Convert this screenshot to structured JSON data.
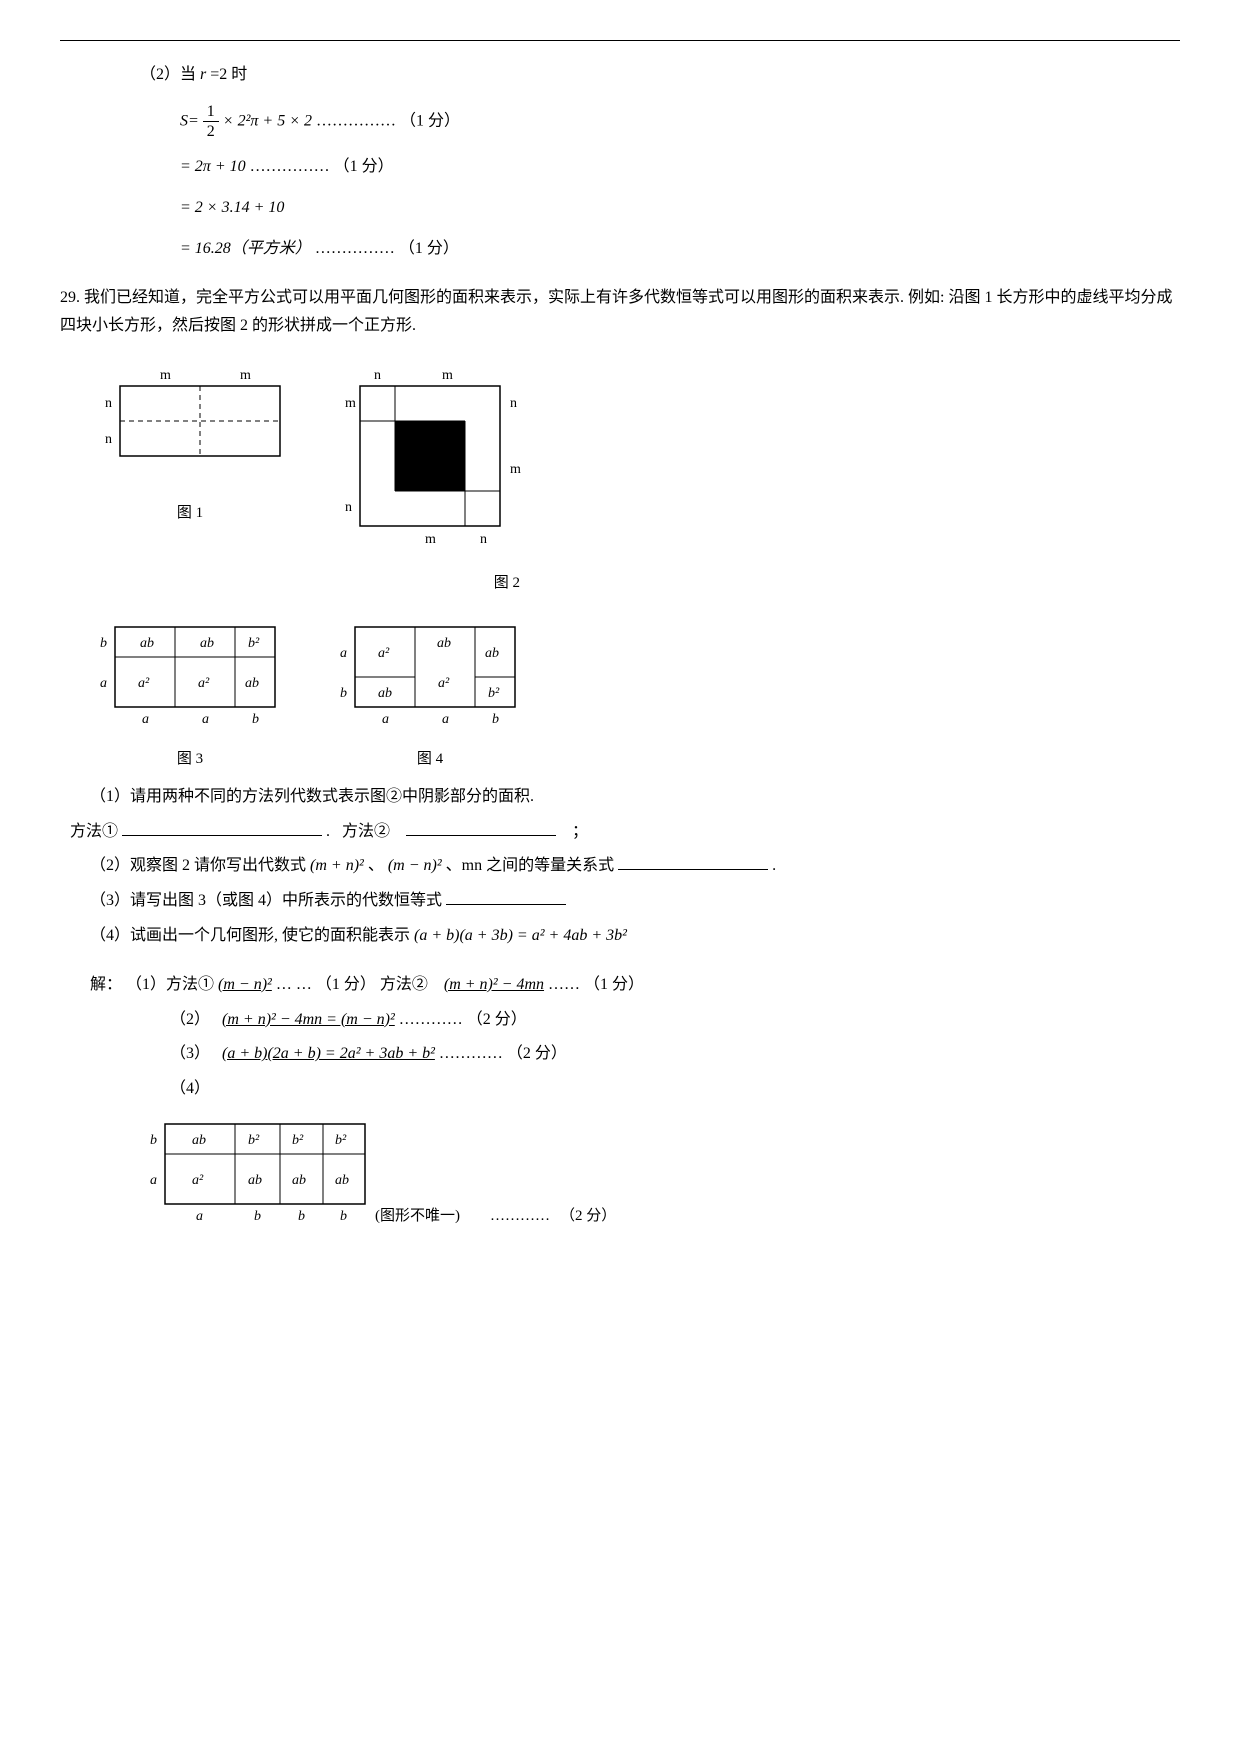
{
  "problem28": {
    "part2_intro": "（2）当",
    "part2_var": "r",
    "part2_eq": "=2 时",
    "line1_prefix": "S=",
    "line1_frac_num": "1",
    "line1_frac_den": "2",
    "line1_rest": "× 2²π + 5 × 2",
    "line1_dots": "……………",
    "line1_score": "（1 分）",
    "line2_val": "= 2π + 10",
    "line2_dots": "……………",
    "line2_score": "（1 分）",
    "line3_val": "= 2 × 3.14 + 10",
    "line4_val": "= 16.28（平方米）",
    "line4_dots": "……………",
    "line4_score": "（1 分）"
  },
  "problem29": {
    "number": "29.",
    "intro": "我们已经知道，完全平方公式可以用平面几何图形的面积来表示，实际上有许多代数恒等式可以用图形的面积来表示. 例如: 沿图 1 长方形中的虚线平均分成四块小长方形，然后按图 2 的形状拼成一个正方形.",
    "fig1_label": "图 1",
    "fig2_label": "图 2",
    "fig3_label": "图 3",
    "fig4_label": "图 4",
    "fig_labels": {
      "m": "m",
      "n": "n",
      "a": "a",
      "b": "b",
      "a2": "a²",
      "b2": "b²",
      "ab": "ab"
    },
    "q1": "（1）请用两种不同的方法列代数式表示图②中阴影部分的面积.",
    "q1_method1_label": "方法①",
    "q1_method1_blank_width": 200,
    "q1_punct": ".",
    "q1_method2_label": "方法②",
    "q1_method2_blank_width": 150,
    "q1_semicolon": "；",
    "q2_prefix": "（2）观察图 2 请你写出代数式",
    "q2_expr1": "(m + n)²",
    "q2_sep1": "、",
    "q2_expr2": "(m − n)²",
    "q2_sep2": "、mn 之间的等量关系式",
    "q2_blank_width": 150,
    "q2_period": ".",
    "q3_prefix": "（3）请写出图 3（或图 4）中所表示的代数恒等式",
    "q3_blank_width": 120,
    "q4_prefix": "（4）试画出一个几何图形, 使它的面积能表示",
    "q4_expr": "(a + b)(a + 3b) = a² + 4ab + 3b²",
    "answer_label": "解：",
    "ans1_prefix": "（1）方法①",
    "ans1_method1": "(m − n)²",
    "ans1_dots1": "… …",
    "ans1_score1": "（1 分）",
    "ans1_method2_label": "方法②",
    "ans1_method2": "(m + n)² − 4mn",
    "ans1_dots2": "……",
    "ans1_score2": "（1 分）",
    "ans2_prefix": "（2）",
    "ans2_expr": "(m + n)² − 4mn = (m − n)²",
    "ans2_dots": "…………",
    "ans2_score": "（2 分）",
    "ans3_prefix": "（3）",
    "ans3_expr": "(a + b)(2a + b) = 2a² + 3ab + b²",
    "ans3_dots": "…………",
    "ans3_score": "（2 分）",
    "ans4_prefix": "（4）",
    "ans4_note": "(图形不唯一)",
    "ans4_dots": "…………",
    "ans4_score": "（2 分）"
  }
}
